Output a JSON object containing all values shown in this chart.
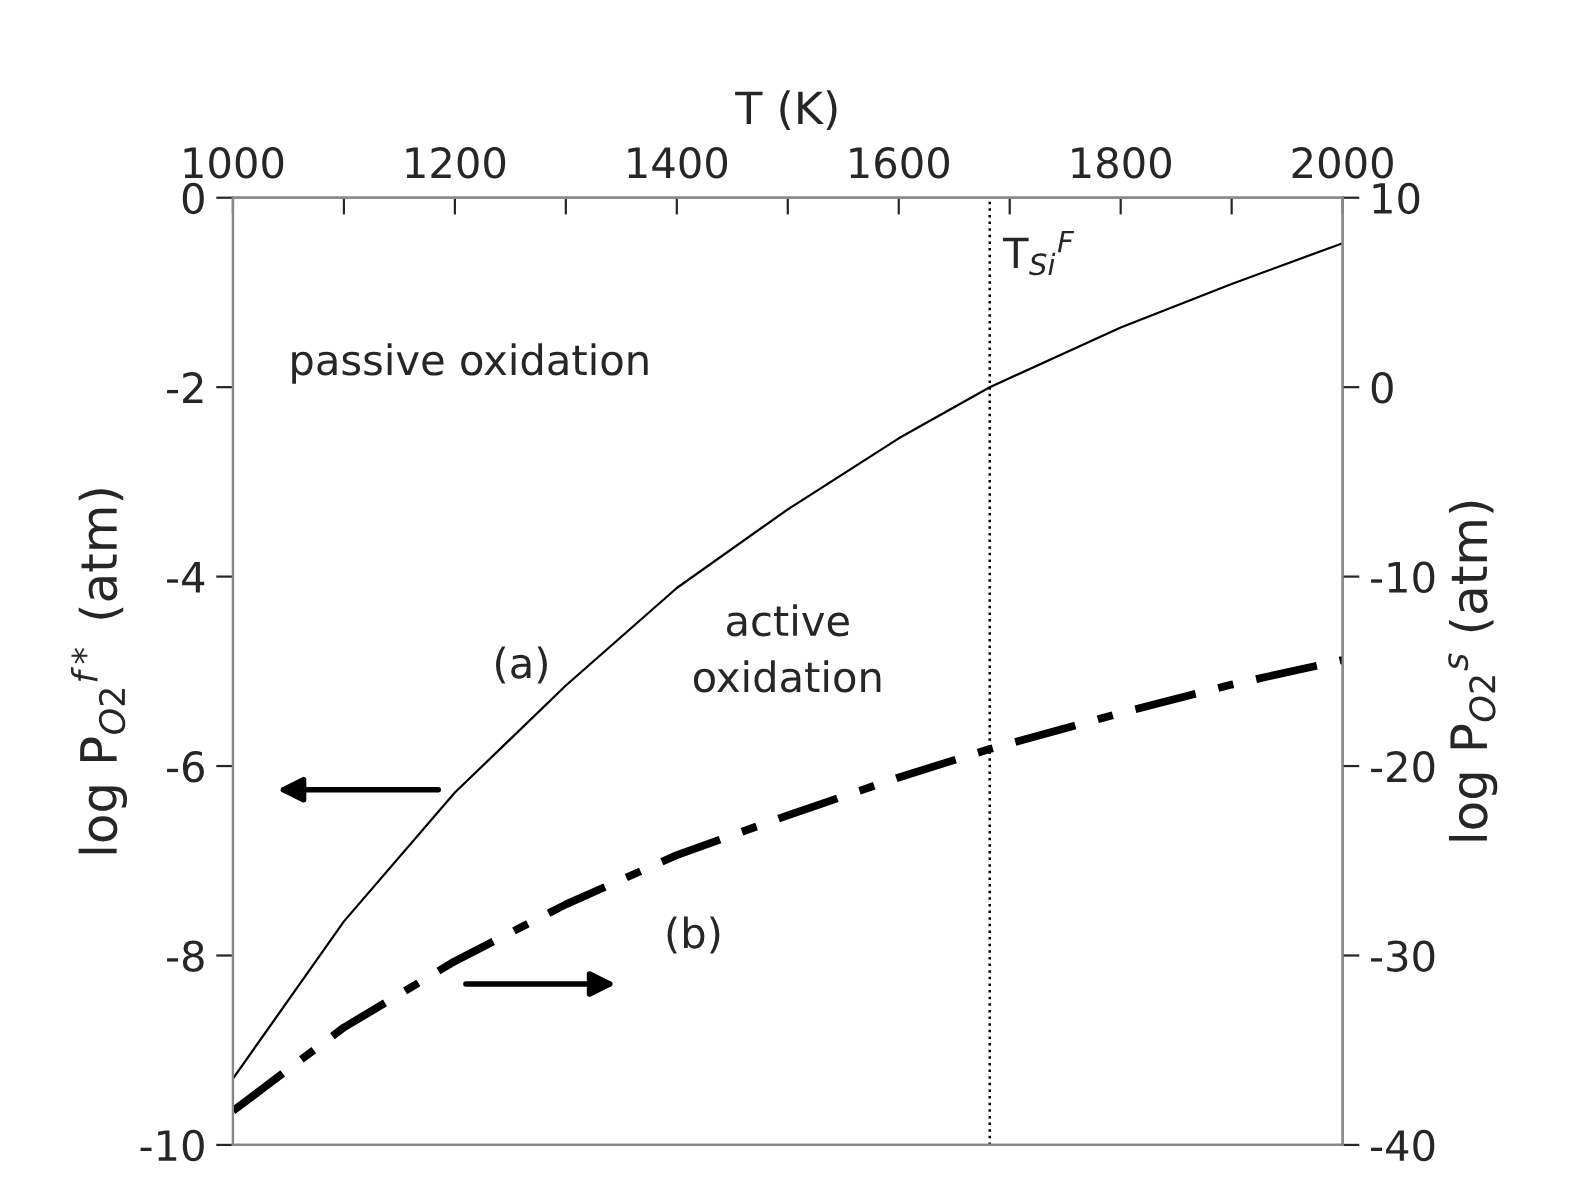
{
  "chart_data": {
    "type": "line",
    "xlabel": "T (K)",
    "ylabel": "log P$_{O2}$$^{f*}$ (atm)",
    "y2label": "log P$_{O2}$$^{s}$ (atm)",
    "x": [
      1000,
      1100,
      1200,
      1300,
      1400,
      1500,
      1600,
      1682,
      1800,
      1900,
      2000
    ],
    "series": [
      {
        "color": "#000000",
        "line_style": "solid",
        "values": [
          -9.3,
          -7.64,
          -6.28,
          -5.15,
          -4.12,
          -3.29,
          -2.54,
          -2.0,
          -1.37,
          -0.91,
          -0.48
        ]
      },
      {
        "color": "#000000",
        "line_style": "dashdot",
        "axis": "y2",
        "values": [
          -38.2,
          -33.8,
          -30.3,
          -27.3,
          -24.7,
          -22.6,
          -20.6,
          -19.1,
          -17.2,
          -15.7,
          -14.4
        ]
      }
    ],
    "xlim": [
      1000,
      2000
    ],
    "xticks": [
      1000,
      {
        "value": 1100,
        "label": null
      },
      1200,
      {
        "value": 1300,
        "label": null
      },
      1400,
      {
        "value": 1500,
        "label": null
      },
      1600,
      {
        "value": 1700,
        "label": null
      },
      1800,
      {
        "value": 1900,
        "label": null
      },
      2000
    ],
    "ylim": [
      -10,
      0
    ],
    "yticks": [
      -10,
      -8,
      -6,
      -4,
      -2,
      0
    ],
    "y2lim": [
      -40,
      10
    ],
    "y2ticks": [
      -40,
      -30,
      -20,
      -10,
      0,
      10
    ],
    "ref_lines": [
      {
        "axis": "x",
        "value": 1682,
        "label": "T$_{Si}$$^{F}$",
        "color": "#000000",
        "line_style": "dotted"
      }
    ],
    "annotations": [
      "passive oxidation",
      "active\noxidation",
      "(a)",
      "(b)"
    ],
    "grid": false,
    "legend": false,
    "marker": "none"
  }
}
